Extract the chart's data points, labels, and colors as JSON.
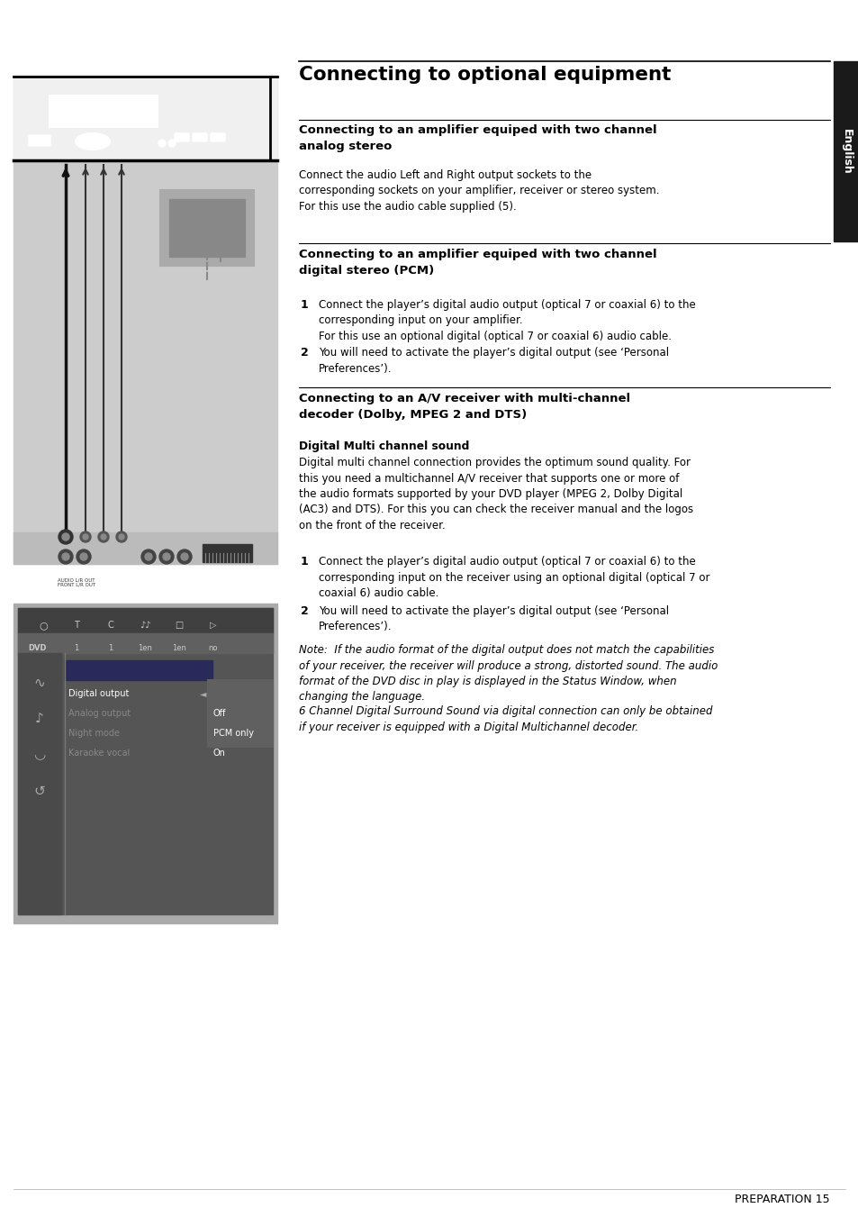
{
  "page_bg": "#ffffff",
  "content_bg": "#ffffff",
  "sidebar_bg": "#1a1a1a",
  "sidebar_text": "English",
  "sidebar_text_color": "#ffffff",
  "main_title": "Connecting to optional equipment",
  "section1_title": "Connecting to an amplifier equiped with two channel\nanalog stereo",
  "section1_body": "Connect the audio Left and Right output sockets to the\ncorresponding sockets on your amplifier, receiver or stereo system.\nFor this use the audio cable supplied (5).",
  "section2_title": "Connecting to an amplifier equiped with two channel\ndigital stereo (PCM)",
  "section2_item1": "Connect the player’s digital audio output (optical 7 or coaxial 6) to the\ncorresponding input on your amplifier.\nFor this use an optional digital (optical 7 or coaxial 6) audio cable.",
  "section2_item2": "You will need to activate the player’s digital output (see ‘Personal\nPreferences’).",
  "section3_title": "Connecting to an A/V receiver with multi-channel\ndecoder (Dolby, MPEG 2 and DTS)",
  "section3_subtitle": "Digital Multi channel sound",
  "section3_body": "Digital multi channel connection provides the optimum sound quality. For\nthis you need a multichannel A/V receiver that supports one or more of\nthe audio formats supported by your DVD player (MPEG 2, Dolby Digital\n(AC3) and DTS). For this you can check the receiver manual and the logos\non the front of the receiver.",
  "section3_item1": "Connect the player’s digital audio output (optical 7 or coaxial 6) to the\ncorresponding input on the receiver using an optional digital (optical 7 or\ncoaxial 6) audio cable.",
  "section3_item2": "You will need to activate the player’s digital output (see ‘Personal\nPreferences’).",
  "note_text1": "Note:  If the audio format of the digital output does not match the capabilities\nof your receiver, the receiver will produce a strong, distorted sound. The audio\nformat of the DVD disc in play is displayed in the Status Window, when\nchanging the language.",
  "note_text2": "6 Channel Digital Surround Sound via digital connection can only be obtained\nif your receiver is equipped with a Digital Multichannel decoder.",
  "footer_text": "PREPARATION 15",
  "diagram_bg": "#cccccc",
  "diagram_panel_bg": "#e8e8e8",
  "dvd_unit_bg": "#f0f0f0",
  "menu_outer_bg": "#aaaaaa",
  "menu_dark_bg": "#555555",
  "menu_header_bg": "#444444",
  "menu_status_bg": "#666666",
  "menu_left_bg": "#555555",
  "menu_right_bg": "#666666",
  "menu_popup_bg": "#666666",
  "menu_popup_border": "#ffffff",
  "menu_text_active": "#ffffff",
  "menu_text_inactive": "#aaaaaa"
}
